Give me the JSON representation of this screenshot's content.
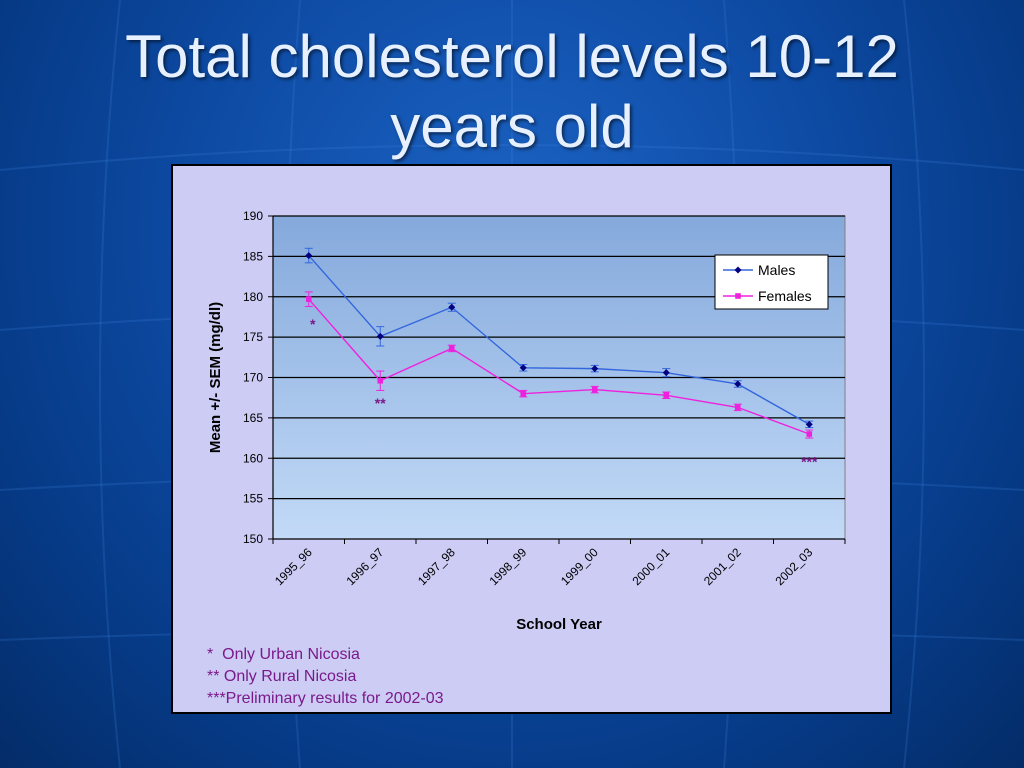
{
  "slide": {
    "title_line1": "Total cholesterol levels 10-12",
    "title_line2": "years old"
  },
  "colors": {
    "background": "#0d4aa3",
    "title_text": "#e6f0ff",
    "panel": "#ccccf5",
    "plot_top": "#85a9dc",
    "plot_bottom": "#c2daf7",
    "males": "#3366dd",
    "males_marker": "#000080",
    "females": "#ee22dd",
    "annotation": "#7a1a8a"
  },
  "chart_data": {
    "type": "line",
    "xlabel": "School Year",
    "ylabel": "Mean +/- SEM (mg/dl)",
    "ylim": [
      150,
      190
    ],
    "yticks": [
      150,
      155,
      160,
      165,
      170,
      175,
      180,
      185,
      190
    ],
    "grid": true,
    "legend_position": "top-right",
    "categories": [
      "1995_96",
      "1996_97",
      "1997_98",
      "1998_99",
      "1999_00",
      "2000_01",
      "2001_02",
      "2002_03"
    ],
    "series": [
      {
        "name": "Males",
        "values": [
          185.1,
          175.1,
          178.7,
          171.2,
          171.1,
          170.6,
          169.2,
          164.2
        ],
        "errors": [
          0.9,
          1.2,
          0.5,
          0.4,
          0.4,
          0.5,
          0.4,
          0.4
        ],
        "marker": "diamond"
      },
      {
        "name": "Females",
        "values": [
          179.7,
          169.6,
          173.6,
          168.0,
          168.5,
          167.8,
          166.3,
          163.0
        ],
        "errors": [
          0.9,
          1.2,
          0.4,
          0.4,
          0.4,
          0.4,
          0.4,
          0.5
        ],
        "marker": "square"
      }
    ],
    "annotations": [
      {
        "text": "*",
        "category": "1995_96",
        "y": 176.0
      },
      {
        "text": "**",
        "category": "1996_97",
        "y": 166.2
      },
      {
        "text": "***",
        "category": "2002_03",
        "y": 159.0
      }
    ]
  },
  "footnotes": [
    "*  Only Urban Nicosia",
    "** Only Rural Nicosia",
    "***Preliminary results for 2002-03"
  ]
}
